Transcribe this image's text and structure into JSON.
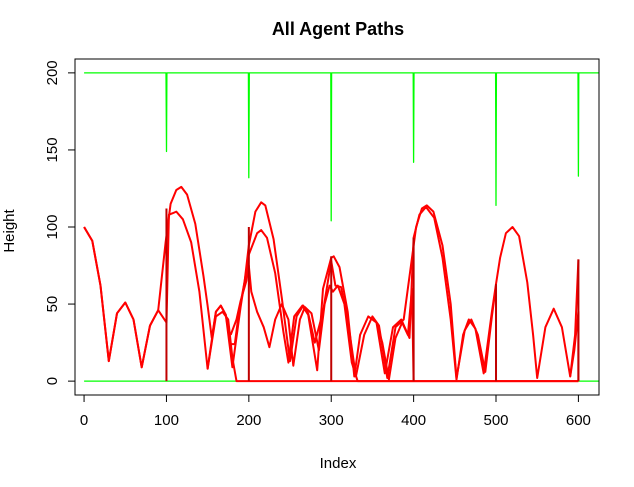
{
  "chart_data": {
    "type": "line",
    "title": "All Agent Paths",
    "xlabel": "Index",
    "ylabel": "Height",
    "xlim": [
      -11,
      625
    ],
    "ylim": [
      -9,
      209
    ],
    "x_ticks": [
      0,
      100,
      200,
      300,
      400,
      500,
      600
    ],
    "y_ticks": [
      0,
      50,
      100,
      150,
      200
    ],
    "colors": {
      "red": "#ff0000",
      "green": "#00ff00",
      "dark_red": "#c00000"
    },
    "series": [
      {
        "color": "green",
        "points": [
          [
            0,
            200
          ],
          [
            99.5,
            200
          ],
          [
            100,
            149
          ],
          [
            100.5,
            200
          ],
          [
            199.5,
            200
          ],
          [
            200,
            132
          ],
          [
            200.5,
            200
          ],
          [
            299.5,
            200
          ],
          [
            300,
            104
          ],
          [
            300.5,
            200
          ],
          [
            399.5,
            200
          ],
          [
            400,
            142
          ],
          [
            400.5,
            200
          ],
          [
            499.5,
            200
          ],
          [
            500,
            114
          ],
          [
            500.5,
            200
          ],
          [
            599.5,
            200
          ],
          [
            600,
            133
          ],
          [
            600.5,
            200
          ],
          [
            625,
            200
          ]
        ]
      },
      {
        "color": "green",
        "points": [
          [
            0,
            0
          ],
          [
            625,
            0
          ]
        ]
      },
      {
        "color": "red",
        "points": [
          [
            0,
            100
          ],
          [
            10,
            91
          ],
          [
            20,
            62
          ],
          [
            30,
            13
          ],
          [
            40,
            44
          ],
          [
            50,
            51
          ],
          [
            60,
            40
          ],
          [
            70,
            9
          ],
          [
            80,
            36
          ],
          [
            90,
            46
          ],
          [
            100,
            38
          ],
          [
            103,
            108
          ],
          [
            108,
            109
          ],
          [
            112,
            110
          ],
          [
            120,
            105
          ],
          [
            130,
            90
          ],
          [
            140,
            58
          ],
          [
            150,
            8
          ],
          [
            160,
            42
          ],
          [
            168,
            45
          ],
          [
            175,
            40
          ],
          [
            180,
            15
          ],
          [
            185,
            0
          ],
          [
            600,
            0
          ]
        ]
      },
      {
        "color": "red",
        "points": [
          [
            0,
            100
          ],
          [
            10,
            91
          ],
          [
            20,
            62
          ],
          [
            30,
            13
          ],
          [
            40,
            44
          ],
          [
            50,
            51
          ],
          [
            60,
            40
          ],
          [
            70,
            9
          ],
          [
            80,
            36
          ],
          [
            90,
            46
          ],
          [
            99,
            90
          ],
          [
            105,
            115
          ],
          [
            112,
            124
          ],
          [
            118,
            126
          ],
          [
            125,
            121
          ],
          [
            135,
            102
          ],
          [
            145,
            68
          ],
          [
            150,
            49
          ],
          [
            155,
            28
          ],
          [
            160,
            45
          ],
          [
            166,
            49
          ],
          [
            172,
            43
          ],
          [
            180,
            9
          ],
          [
            190,
            48
          ],
          [
            200,
            82
          ],
          [
            210,
            96
          ],
          [
            215,
            98
          ],
          [
            222,
            93
          ],
          [
            232,
            70
          ],
          [
            242,
            32
          ],
          [
            248,
            12
          ],
          [
            255,
            42
          ],
          [
            265,
            49
          ],
          [
            272,
            43
          ],
          [
            283,
            7
          ],
          [
            290,
            60
          ],
          [
            300,
            80
          ],
          [
            303,
            81
          ],
          [
            310,
            74
          ],
          [
            320,
            45
          ],
          [
            328,
            3
          ],
          [
            335,
            30
          ],
          [
            345,
            42
          ],
          [
            355,
            38
          ],
          [
            365,
            5
          ],
          [
            375,
            35
          ],
          [
            385,
            40
          ],
          [
            395,
            28
          ],
          [
            400,
            93
          ],
          [
            407,
            108
          ],
          [
            415,
            113
          ],
          [
            425,
            106
          ],
          [
            435,
            80
          ],
          [
            445,
            40
          ],
          [
            452,
            1
          ],
          [
            460,
            30
          ],
          [
            467,
            40
          ],
          [
            475,
            34
          ],
          [
            485,
            5
          ],
          [
            495,
            45
          ],
          [
            500,
            63
          ],
          [
            505,
            80
          ],
          [
            512,
            96
          ],
          [
            520,
            100
          ],
          [
            528,
            94
          ],
          [
            538,
            64
          ],
          [
            545,
            30
          ],
          [
            550,
            2
          ],
          [
            560,
            35
          ],
          [
            570,
            47
          ],
          [
            580,
            35
          ],
          [
            590,
            3
          ],
          [
            596,
            30
          ],
          [
            600,
            79
          ]
        ]
      },
      {
        "color": "red",
        "points": [
          [
            150,
            8
          ],
          [
            160,
            45
          ],
          [
            166,
            49
          ],
          [
            172,
            43
          ],
          [
            178,
            24
          ],
          [
            183,
            24
          ],
          [
            188,
            45
          ],
          [
            195,
            65
          ],
          [
            200,
            88
          ],
          [
            208,
            110
          ],
          [
            215,
            116
          ],
          [
            220,
            114
          ],
          [
            230,
            92
          ],
          [
            240,
            54
          ],
          [
            250,
            13
          ],
          [
            258,
            42
          ],
          [
            266,
            49
          ],
          [
            272,
            44
          ],
          [
            280,
            25
          ],
          [
            290,
            45
          ],
          [
            300,
            78
          ],
          [
            305,
            62
          ],
          [
            312,
            61
          ],
          [
            320,
            40
          ],
          [
            330,
            3
          ],
          [
            340,
            30
          ],
          [
            350,
            42
          ],
          [
            358,
            36
          ],
          [
            368,
            2
          ],
          [
            378,
            35
          ],
          [
            388,
            40
          ],
          [
            398,
            80
          ],
          [
            403,
            100
          ],
          [
            410,
            112
          ],
          [
            416,
            114
          ],
          [
            424,
            110
          ],
          [
            435,
            88
          ],
          [
            445,
            50
          ],
          [
            452,
            2
          ],
          [
            462,
            33
          ],
          [
            470,
            40
          ],
          [
            478,
            30
          ],
          [
            487,
            6
          ],
          [
            495,
            42
          ],
          [
            500,
            62
          ]
        ]
      },
      {
        "color": "red",
        "points": [
          [
            178,
            30
          ],
          [
            185,
            40
          ],
          [
            190,
            52
          ],
          [
            197,
            65
          ],
          [
            200,
            75
          ],
          [
            203,
            58
          ],
          [
            210,
            45
          ],
          [
            218,
            35
          ],
          [
            225,
            22
          ],
          [
            232,
            40
          ],
          [
            240,
            50
          ],
          [
            248,
            40
          ],
          [
            254,
            10
          ],
          [
            262,
            40
          ],
          [
            268,
            48
          ],
          [
            276,
            44
          ],
          [
            285,
            20
          ],
          [
            292,
            50
          ],
          [
            298,
            62
          ],
          [
            302,
            58
          ],
          [
            308,
            62
          ],
          [
            316,
            50
          ],
          [
            325,
            12
          ],
          [
            332,
            0
          ],
          [
            600,
            0
          ]
        ]
      },
      {
        "color": "red",
        "points": [
          [
            355,
            38
          ],
          [
            362,
            25
          ],
          [
            370,
            1
          ],
          [
            378,
            28
          ],
          [
            386,
            38
          ],
          [
            393,
            30
          ],
          [
            398,
            60
          ],
          [
            400,
            0
          ]
        ]
      },
      {
        "color": "red",
        "points": [
          [
            590,
            3
          ],
          [
            595,
            20
          ],
          [
            600,
            45
          ],
          [
            600,
            0
          ]
        ]
      }
    ],
    "vertical_markers": [
      {
        "x": 100,
        "y_top": 112,
        "color": "dark_red"
      },
      {
        "x": 200,
        "y_top": 100,
        "color": "dark_red"
      },
      {
        "x": 300,
        "y_top": 81,
        "color": "dark_red"
      },
      {
        "x": 400,
        "y_top": 93,
        "color": "dark_red"
      },
      {
        "x": 500,
        "y_top": 63,
        "color": "dark_red"
      },
      {
        "x": 600,
        "y_top": 79,
        "color": "dark_red"
      }
    ],
    "grid": false,
    "legend": "none"
  }
}
